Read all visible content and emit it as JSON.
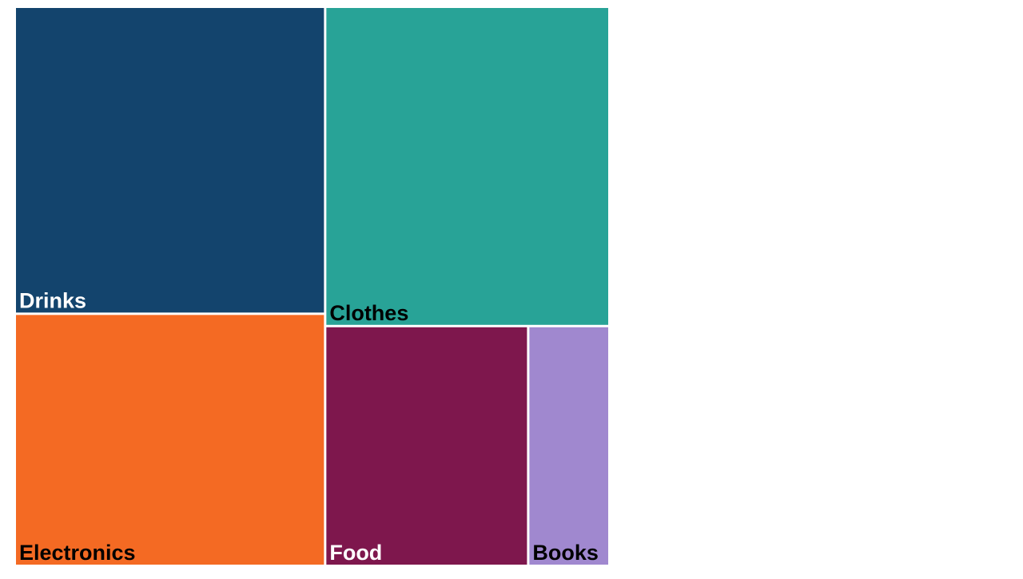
{
  "chart_data": {
    "type": "treemap",
    "title": "",
    "items": [
      {
        "label": "Drinks",
        "value": 27.4,
        "color": "#13446d",
        "text_color": "#ffffff"
      },
      {
        "label": "Electronics",
        "value": 22.5,
        "color": "#f46a23",
        "text_color": "#000000"
      },
      {
        "label": "Clothes",
        "value": 26.1,
        "color": "#28a397",
        "text_color": "#000000"
      },
      {
        "label": "Food",
        "value": 14.0,
        "color": "#7e174d",
        "text_color": "#ffffff"
      },
      {
        "label": "Books",
        "value": 5.6,
        "color": "#a088cf",
        "text_color": "#000000"
      }
    ]
  }
}
